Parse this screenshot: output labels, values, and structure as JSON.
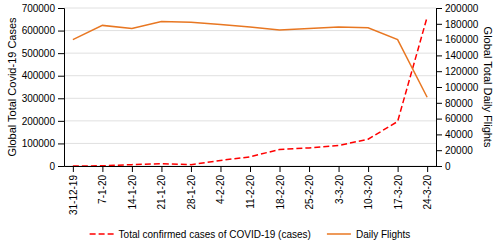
{
  "chart_data": {
    "type": "line",
    "categories": [
      "31-12-19",
      "7-1-20",
      "14-1-20",
      "21-1-20",
      "28-1-20",
      "4-2-20",
      "11-2-20",
      "18-2-20",
      "25-2-20",
      "3-3-20",
      "10-3-20",
      "17-3-20",
      "24-3-20"
    ],
    "series": [
      {
        "name": "Total confirmed cases of COVID-19 (cases)",
        "color": "#FF0000",
        "line_style": "dashed",
        "values": [
          27,
          800,
          6000,
          9800,
          6065,
          24630,
          40540,
          73340,
          80087,
          90869,
          118592,
          197146,
          660000
        ]
      },
      {
        "name": "Daily Flights",
        "color": "#E87722",
        "line_style": "solid",
        "axis": "y2",
        "values": [
          160000,
          178000,
          174000,
          183000,
          182000,
          179000,
          176000,
          172000,
          174000,
          176000,
          175000,
          160000,
          87000
        ]
      }
    ],
    "ylabel": "Global Total Covid-19 Cases",
    "y2label": "Global Total Daily Flights",
    "ylim": [
      0,
      700000
    ],
    "yticks": [
      0,
      100000,
      200000,
      300000,
      400000,
      500000,
      600000,
      700000
    ],
    "y2lim": [
      0,
      200000
    ],
    "y2ticks": [
      0,
      20000,
      40000,
      60000,
      80000,
      100000,
      120000,
      140000,
      160000,
      180000,
      200000
    ],
    "grid": true,
    "legend": "bottom"
  }
}
